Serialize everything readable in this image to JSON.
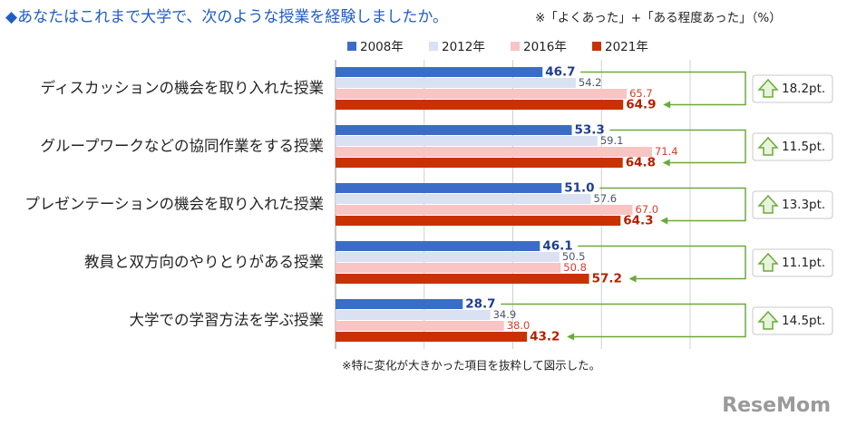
{
  "chart_data": {
    "type": "bar",
    "orientation": "horizontal",
    "title": "◆あなたはこれまで大学で、次のような授業を経験しましたか。",
    "subtitle": "※「よくあった」+「ある程度あった」（%）",
    "categories": [
      "ディスカッションの機会を取り入れた授業",
      "グループワークなどの協同作業をする授業",
      "プレゼンテーションの機会を取り入れた授業",
      "教員と双方向のやりとりがある授業",
      "大学での学習方法を学ぶ授業"
    ],
    "series": [
      {
        "name": "2008年",
        "color": "#3b6dc8",
        "label_color": "#1e3f8f",
        "values": [
          46.7,
          53.3,
          51.0,
          46.1,
          28.7
        ],
        "value_labels": [
          "46.7",
          "53.3",
          "51.0",
          "46.1",
          "28.7"
        ]
      },
      {
        "name": "2012年",
        "color": "#d9e1f2",
        "label_color": "#4a5470",
        "values": [
          54.2,
          59.1,
          57.6,
          50.5,
          34.9
        ],
        "value_labels": [
          "54.2",
          "59.1",
          "57.6",
          "50.5",
          "34.9"
        ]
      },
      {
        "name": "2016年",
        "color": "#f8c4c4",
        "label_color": "#d2402c",
        "values": [
          65.7,
          71.4,
          67.0,
          50.8,
          38.0
        ],
        "value_labels": [
          "65.7",
          "71.4",
          "67.0",
          "50.8",
          "38.0"
        ]
      },
      {
        "name": "2021年",
        "color": "#c93200",
        "label_color": "#b52000",
        "values": [
          64.9,
          64.8,
          64.3,
          57.2,
          43.2
        ],
        "value_labels": [
          "64.9",
          "64.8",
          "64.3",
          "57.2",
          "43.2"
        ]
      }
    ],
    "annotations": [
      "18.2pt.",
      "11.5pt.",
      "13.3pt.",
      "11.1pt.",
      "14.5pt."
    ],
    "annotation_color": "#6aaa3a",
    "xlim": [
      0,
      80
    ],
    "xticks": [
      0,
      20,
      40,
      60,
      80
    ],
    "show_tick_labels": false,
    "grid": true,
    "note": "※特に変化が大きかった項目を抜粋して図示した。",
    "watermark": "ReseMom"
  }
}
